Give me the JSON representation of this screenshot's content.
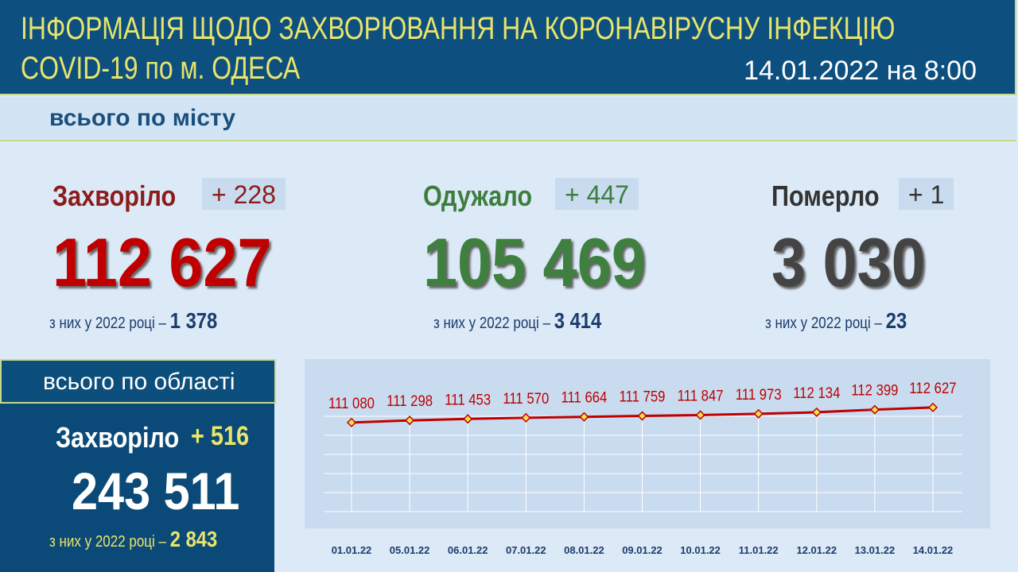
{
  "header": {
    "title_line1": "ІНФОРМАЦІЯ ЩОДО ЗАХВОРЮВАННЯ НА КОРОНАВІРУСНУ ІНФЕКЦІЮ",
    "title_line2": "COVID-19 по м. ОДЕСА",
    "date": "14.01.2022 на 8:00"
  },
  "city": {
    "heading": "всього по місту",
    "stats": [
      {
        "label": "Захворіло",
        "delta": "+ 228",
        "total": "112 627",
        "note": "з них у 2022 році –",
        "note_value": "1 378"
      },
      {
        "label": "Одужало",
        "delta": "+ 447",
        "total": "105 469",
        "note": "з них у 2022 році –",
        "note_value": "3 414"
      },
      {
        "label": "Померло",
        "delta": "+ 1",
        "total": "3 030",
        "note": "з них у 2022 році –",
        "note_value": "23"
      }
    ]
  },
  "region": {
    "heading": "всього по області",
    "label": "Захворіло",
    "delta": "+ 516",
    "total": "243 511",
    "note": "з них у 2022 році –",
    "note_value": "2 843"
  },
  "chart_data": {
    "type": "line",
    "categories": [
      "01.01.22",
      "05.01.22",
      "06.01.22",
      "07.01.22",
      "08.01.22",
      "09.01.22",
      "10.01.22",
      "11.01.22",
      "12.01.22",
      "13.01.22",
      "14.01.22"
    ],
    "values": [
      111080,
      111298,
      111453,
      111570,
      111664,
      111759,
      111847,
      111973,
      112134,
      112399,
      112627
    ],
    "value_labels": [
      "111 080",
      "111 298",
      "111 453",
      "111 570",
      "111 664",
      "111 759",
      "111 847",
      "111 973",
      "112 134",
      "112 399",
      "112 627"
    ],
    "color": "#c00000",
    "ylim": [
      100000,
      114000
    ]
  }
}
